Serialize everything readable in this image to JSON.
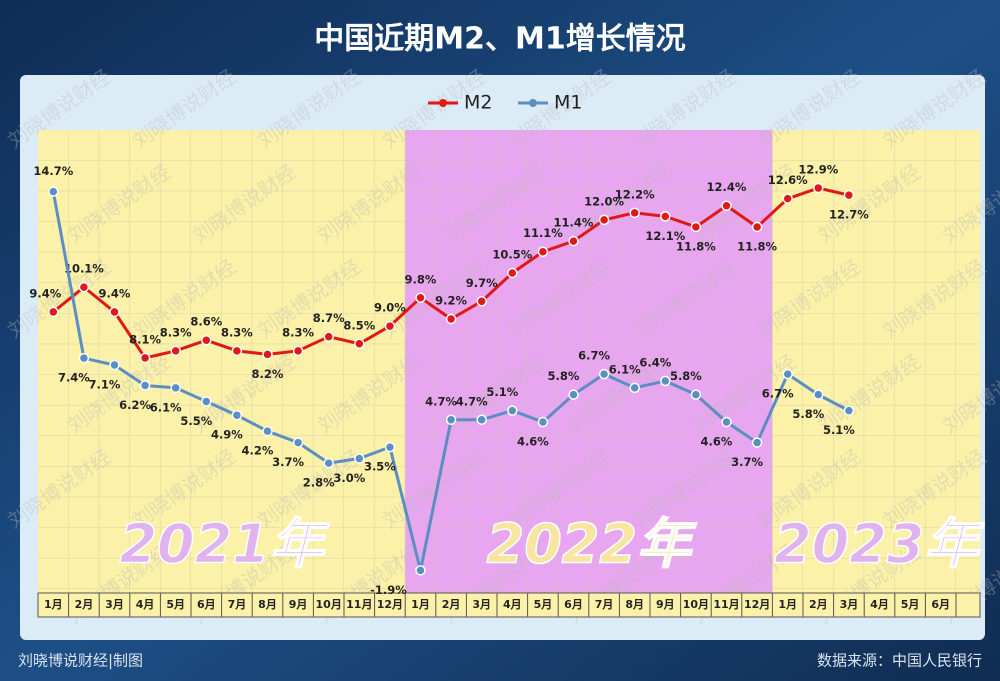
{
  "chart_data": {
    "type": "line",
    "title": "中国近期M2、M1增长情况",
    "categories": [
      "1月",
      "2月",
      "3月",
      "4月",
      "5月",
      "6月",
      "7月",
      "8月",
      "9月",
      "10月",
      "11月",
      "12月",
      "1月",
      "2月",
      "3月",
      "4月",
      "5月",
      "6月",
      "7月",
      "8月",
      "9月",
      "10月",
      "11月",
      "12月",
      "1月",
      "2月",
      "3月",
      "4月",
      "5月",
      "6月"
    ],
    "year_labels": [
      "2021年",
      "2022年",
      "2023年"
    ],
    "band_colors": [
      "#fbf1a8",
      "#e8a6f0",
      "#fbf1a8"
    ],
    "series": [
      {
        "name": "M2",
        "color": "#e01818",
        "values": [
          9.4,
          10.1,
          9.4,
          8.1,
          8.3,
          8.6,
          8.3,
          8.2,
          8.3,
          8.7,
          8.5,
          9.0,
          9.8,
          9.2,
          9.7,
          10.5,
          11.1,
          11.4,
          12.0,
          12.2,
          12.1,
          11.8,
          12.4,
          11.8,
          12.6,
          12.9,
          12.7,
          null,
          null,
          null
        ],
        "value_labels": [
          "9.4%",
          "10.1%",
          "9.4%",
          "8.1%",
          "8.3%",
          "8.6%",
          "8.3%",
          "8.2%",
          "8.3%",
          "8.7%",
          "8.5%",
          "9.0%",
          "9.8%",
          "9.2%",
          "9.7%",
          "10.5%",
          "11.1%",
          "11.4%",
          "12.0%",
          "12.2%",
          "12.1%",
          "11.8%",
          "12.4%",
          "11.8%",
          "12.6%",
          "12.9%",
          "12.7%",
          null,
          null,
          null
        ]
      },
      {
        "name": "M1",
        "color": "#5b8fc4",
        "axis": "y2",
        "values": [
          14.7,
          7.4,
          7.1,
          6.2,
          6.1,
          5.5,
          4.9,
          4.2,
          3.7,
          2.8,
          3.0,
          3.5,
          -1.9,
          4.7,
          4.7,
          5.1,
          4.6,
          5.8,
          6.7,
          6.1,
          6.4,
          5.8,
          4.6,
          3.7,
          6.7,
          5.8,
          5.1,
          null,
          null,
          null
        ],
        "value_labels": [
          "14.7%",
          "7.4%",
          "7.1%",
          "6.2%",
          "6.1%",
          "5.5%",
          "4.9%",
          "4.2%",
          "3.7%",
          "2.8%",
          "3.0%",
          "3.5%",
          "-1.9%",
          "4.7%",
          "4.7%",
          "5.1%",
          "4.6%",
          "5.8%",
          "6.7%",
          "6.1%",
          "6.4%",
          "5.8%",
          "4.6%",
          "3.7%",
          "6.7%",
          "5.8%",
          "5.1%",
          null,
          null,
          null
        ]
      }
    ],
    "ylim": [
      1.26,
      14.54
    ],
    "y2lim": [
      -3.2,
      17.4
    ],
    "watermark": "刘晓博说财经",
    "credit": "刘晓博说财经|制图",
    "source": "数据来源：中国人民银行"
  }
}
